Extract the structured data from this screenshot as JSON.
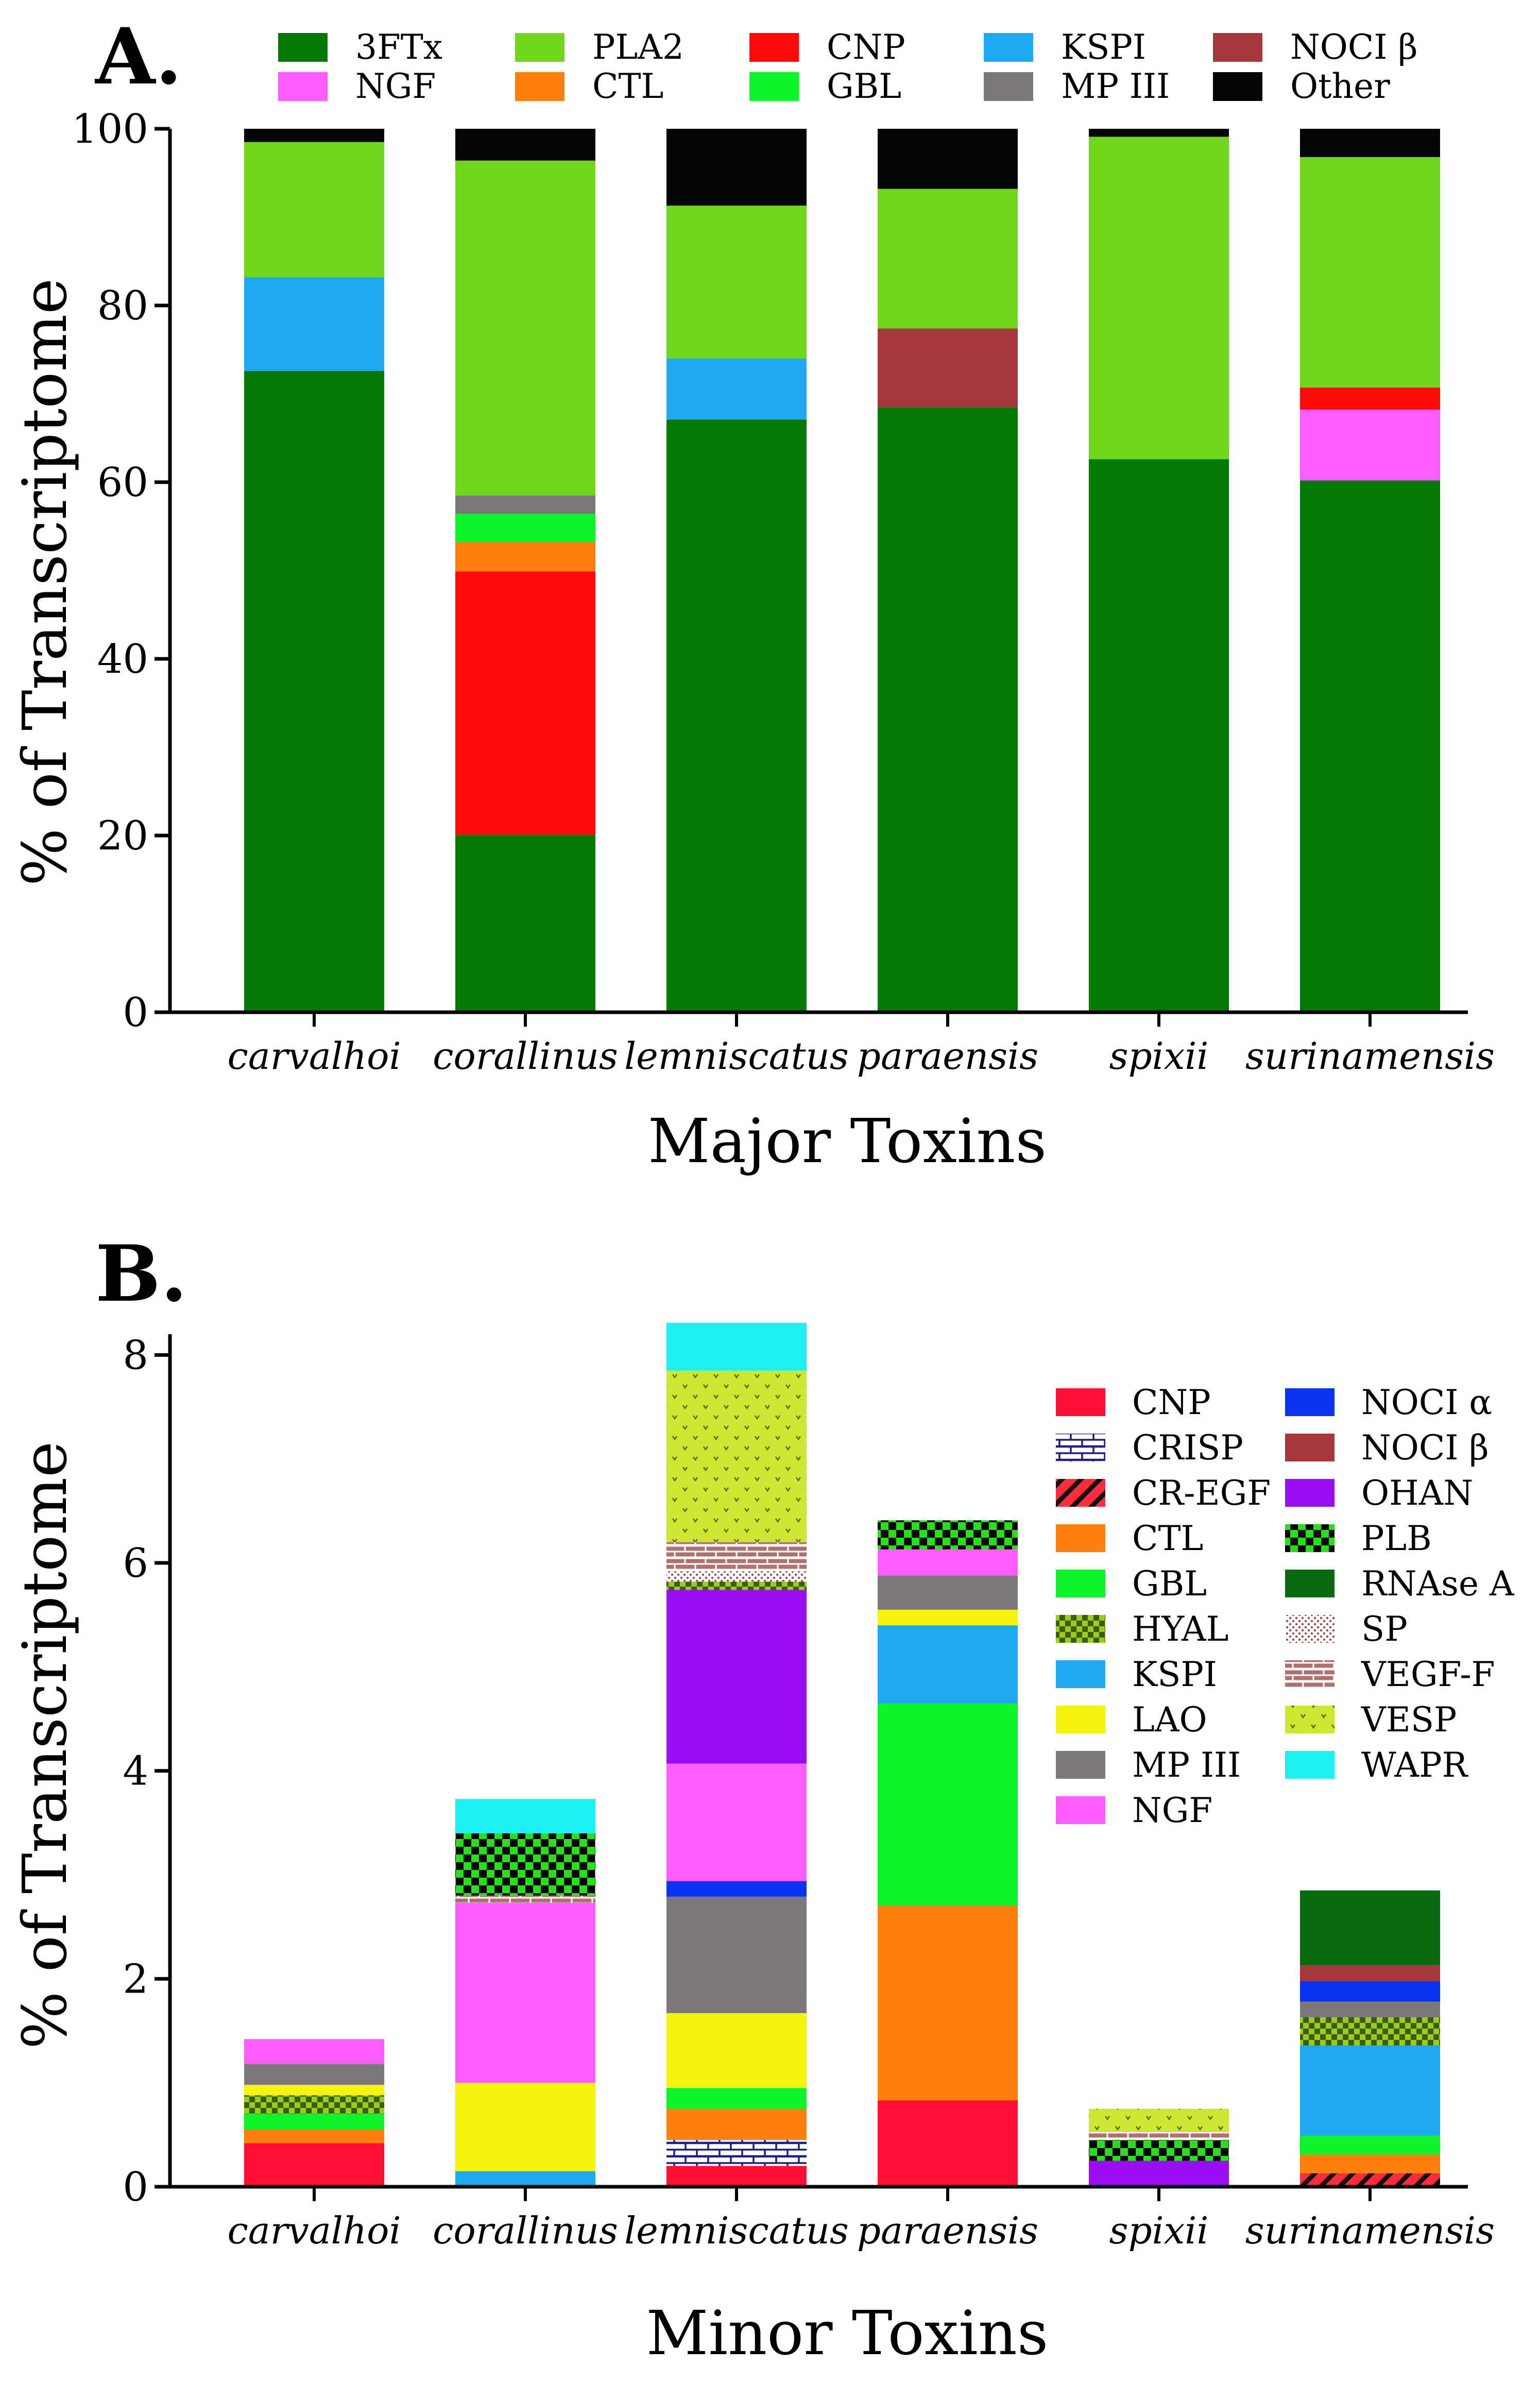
{
  "colors": {
    "3FTx": "#047a04",
    "NGF": "#ff5cff",
    "PLA2": "#6fd61b",
    "CTL": "#ff7f0e",
    "CNP": "#ff0a0a",
    "GBL": "#0df52a",
    "KSPI": "#1ea9f0",
    "MP III": "#7b787a",
    "NOCI β": "#a6373c",
    "Other": "#050505",
    "CR-EGF": "#ff2c3e",
    "CRISP": "#ffffff",
    "HYAL": "#9ccb1c",
    "LAO": "#f4f40d",
    "NOCI α": "#0734f2",
    "OHAN": "#9a0df2",
    "PLB": "#0d4a0d",
    "RNAse A": "#0a6a10",
    "SP": "#ffffff",
    "VEGF-F": "#b07070",
    "VESP": "#cde832",
    "WAPR": "#1cf0f2",
    "CNP_minor": "#ff0f35"
  },
  "chart_data": [
    {
      "type": "bar",
      "stacked": true,
      "panel_label": "A.",
      "title": "",
      "xlabel": "Major Toxins",
      "ylabel": "% of Transcriptome",
      "ylim": [
        0,
        100
      ],
      "yticks": [
        "0",
        "20",
        "40",
        "60",
        "80",
        "100"
      ],
      "categories": [
        "carvalhoi",
        "corallinus",
        "lemniscatus",
        "paraensis",
        "spixii",
        "surinamensis"
      ],
      "legend": [
        "3FTx",
        "NGF",
        "PLA2",
        "CTL",
        "CNP",
        "GBL",
        "KSPI",
        "MP III",
        "NOCI β",
        "Other"
      ],
      "legend_position": "top",
      "series": [
        {
          "name": "3FTx",
          "values": [
            72.6,
            20.1,
            67.1,
            68.5,
            62.6,
            60.2
          ]
        },
        {
          "name": "NGF",
          "values": [
            0,
            0,
            0,
            0,
            0,
            8.0
          ]
        },
        {
          "name": "CNP",
          "values": [
            0,
            29.8,
            0,
            0,
            0,
            2.5
          ]
        },
        {
          "name": "CTL",
          "values": [
            0,
            3.3,
            0,
            0,
            0,
            0
          ]
        },
        {
          "name": "GBL",
          "values": [
            0,
            3.2,
            0,
            0,
            0,
            0
          ]
        },
        {
          "name": "MP III",
          "values": [
            0,
            2.1,
            0,
            0,
            0,
            0
          ]
        },
        {
          "name": "KSPI",
          "values": [
            10.6,
            0,
            6.9,
            0,
            0,
            0
          ]
        },
        {
          "name": "NOCI β",
          "values": [
            0,
            0,
            0,
            8.9,
            0,
            0
          ]
        },
        {
          "name": "PLA2",
          "values": [
            15.3,
            37.9,
            17.3,
            15.8,
            36.5,
            26.1
          ]
        },
        {
          "name": "Other",
          "values": [
            1.5,
            3.6,
            8.7,
            6.8,
            0.9,
            3.2
          ]
        }
      ]
    },
    {
      "type": "bar",
      "stacked": true,
      "panel_label": "B.",
      "title": "",
      "xlabel": "Minor Toxins",
      "ylabel": "% of Transcriptome",
      "ylim": [
        0,
        8.2
      ],
      "yticks": [
        "0",
        "2",
        "4",
        "6",
        "8"
      ],
      "categories": [
        "carvalhoi",
        "corallinus",
        "lemniscatus",
        "paraensis",
        "spixii",
        "surinamensis"
      ],
      "legend": [
        "CNP",
        "CRISP",
        "CR-EGF",
        "CTL",
        "GBL",
        "HYAL",
        "KSPI",
        "LAO",
        "MP III",
        "NGF",
        "NOCI α",
        "NOCI β",
        "OHAN",
        "PLB",
        "RNAse A",
        "SP",
        "VEGF-F",
        "VESP",
        "WAPR"
      ],
      "legend_position": "right",
      "series": [
        {
          "name": "CR-EGF",
          "values": [
            0,
            0,
            0,
            0,
            0,
            0.13
          ]
        },
        {
          "name": "CNP",
          "values": [
            0.42,
            0,
            0.2,
            0.83,
            0,
            0
          ]
        },
        {
          "name": "CRISP",
          "values": [
            0,
            0,
            0.25,
            0,
            0,
            0
          ]
        },
        {
          "name": "OHAN",
          "values": [
            0,
            0,
            0,
            0,
            0.25,
            0
          ]
        },
        {
          "name": "CTL",
          "values": [
            0.13,
            0,
            0.3,
            1.87,
            0,
            0.18
          ]
        },
        {
          "name": "GBL",
          "values": [
            0.15,
            0,
            0.2,
            1.95,
            0,
            0.18
          ]
        },
        {
          "name": "KSPI",
          "values": [
            0,
            0.15,
            0,
            0.75,
            0,
            0.87
          ]
        },
        {
          "name": "PLB",
          "values": [
            0,
            0,
            0,
            0,
            0.2,
            0
          ]
        },
        {
          "name": "HYAL",
          "values": [
            0.18,
            0,
            0,
            0,
            0,
            0.27
          ]
        },
        {
          "name": "LAO",
          "values": [
            0.1,
            0.85,
            0.72,
            0.15,
            0,
            0
          ]
        },
        {
          "name": "MP III",
          "values": [
            0.2,
            0,
            1.12,
            0.33,
            0,
            0.15
          ]
        },
        {
          "name": "NOCI α",
          "values": [
            0,
            0,
            0.15,
            0,
            0,
            0.2
          ]
        },
        {
          "name": "NOCI β",
          "values": [
            0,
            0,
            0,
            0,
            0,
            0.15
          ]
        },
        {
          "name": "RNAse A",
          "values": [
            0,
            0,
            0,
            0,
            0,
            0.72
          ]
        },
        {
          "name": "NGF",
          "values": [
            0.24,
            1.73,
            1.13,
            0.25,
            0,
            0
          ]
        },
        {
          "name": "OHAN ",
          "values": [
            0,
            0,
            1.67,
            0,
            0,
            0
          ]
        },
        {
          "name": "HYAL ",
          "values": [
            0,
            0,
            0.08,
            0,
            0,
            0
          ]
        },
        {
          "name": "SP",
          "values": [
            0,
            0,
            0.1,
            0,
            0,
            0
          ]
        },
        {
          "name": "VEGF-F",
          "values": [
            0,
            0.07,
            0.28,
            0,
            0.08,
            0
          ]
        },
        {
          "name": "PLB ",
          "values": [
            0,
            0.6,
            0,
            0.28,
            0,
            0
          ]
        },
        {
          "name": "VESP",
          "values": [
            0,
            0,
            1.65,
            0,
            0.22,
            0
          ]
        },
        {
          "name": "WAPR",
          "values": [
            0,
            0.33,
            0.46,
            0,
            0,
            0
          ]
        }
      ]
    }
  ]
}
